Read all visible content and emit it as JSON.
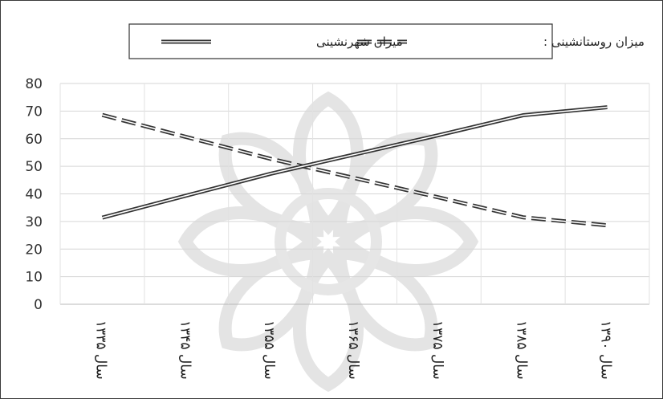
{
  "chart_data": {
    "type": "line",
    "title": "",
    "xlabel": "",
    "ylabel": "",
    "categories": [
      "سال ۱۳۳۵",
      "سال ۱۳۴۵",
      "سال ۱۳۵۵",
      "سال ۱۳۶۵",
      "سال ۱۳۷۵",
      "سال ۱۳۸۵",
      "سال ۱۳۹۰"
    ],
    "ylim": [
      0,
      80
    ],
    "y_ticks": [
      0,
      10,
      20,
      30,
      40,
      50,
      60,
      70,
      80
    ],
    "grid": true,
    "legend_position": "top-center",
    "series": [
      {
        "name": "میزان روستانشینی :",
        "style": "dashed-double",
        "color": "#333333",
        "values": [
          68.6,
          60.6,
          52.7,
          45.7,
          38.7,
          31.5,
          28.6
        ]
      },
      {
        "name": "میزان شهرنشینی",
        "style": "solid-double",
        "color": "#333333",
        "values": [
          31.4,
          39.4,
          47.3,
          54.3,
          61.3,
          68.5,
          71.4
        ]
      }
    ]
  }
}
